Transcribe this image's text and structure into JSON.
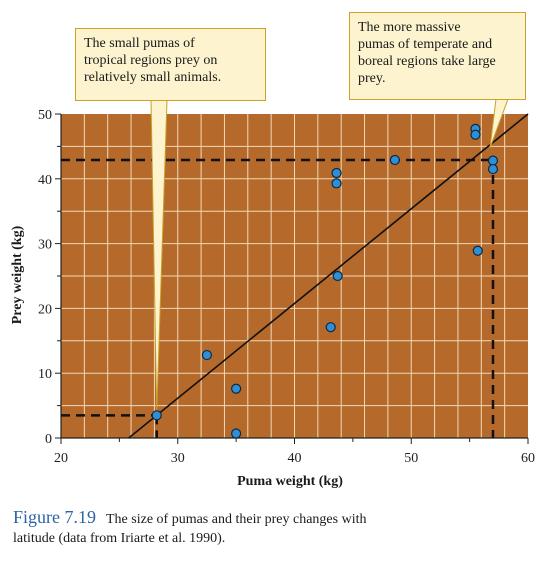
{
  "chart_data": {
    "type": "scatter",
    "xlabel": "Puma weight (kg)",
    "ylabel": "Prey weight (kg)",
    "xlim": [
      20,
      60
    ],
    "ylim": [
      0,
      50
    ],
    "xticks": [
      "20",
      "30",
      "40",
      "50",
      "60"
    ],
    "yticks": [
      "0",
      "10",
      "20",
      "30",
      "40",
      "50"
    ],
    "grid": true,
    "background_color": "#b5692b",
    "grid_color": "#f2d9b8",
    "point_color": "#2e8fd6",
    "points": [
      {
        "x": 28.2,
        "y": 3.5
      },
      {
        "x": 32.5,
        "y": 12.8
      },
      {
        "x": 35.0,
        "y": 7.6
      },
      {
        "x": 35.0,
        "y": 0.7
      },
      {
        "x": 43.1,
        "y": 17.1
      },
      {
        "x": 43.7,
        "y": 25.0
      },
      {
        "x": 43.6,
        "y": 39.3
      },
      {
        "x": 43.6,
        "y": 40.9
      },
      {
        "x": 48.6,
        "y": 42.9
      },
      {
        "x": 55.5,
        "y": 47.7
      },
      {
        "x": 55.5,
        "y": 46.8
      },
      {
        "x": 55.7,
        "y": 28.9
      },
      {
        "x": 57.0,
        "y": 42.8
      },
      {
        "x": 57.0,
        "y": 41.5
      }
    ],
    "trend_line": {
      "x": [
        25.8,
        60
      ],
      "y": [
        0,
        50
      ]
    },
    "reference_lines": [
      {
        "x": 28.2,
        "y": 3.5
      },
      {
        "x": 57.0,
        "y": 42.9
      }
    ]
  },
  "annotations": {
    "left": [
      "The small pumas of",
      "tropical regions prey on",
      "relatively small animals."
    ],
    "right": [
      "The more massive",
      "pumas of temperate and",
      "boreal regions take large",
      "prey."
    ]
  },
  "caption": {
    "label": "Figure 7.19",
    "line1": "The size of pumas and their prey changes with",
    "line2": "latitude (data from Iriarte et al. 1990)."
  }
}
